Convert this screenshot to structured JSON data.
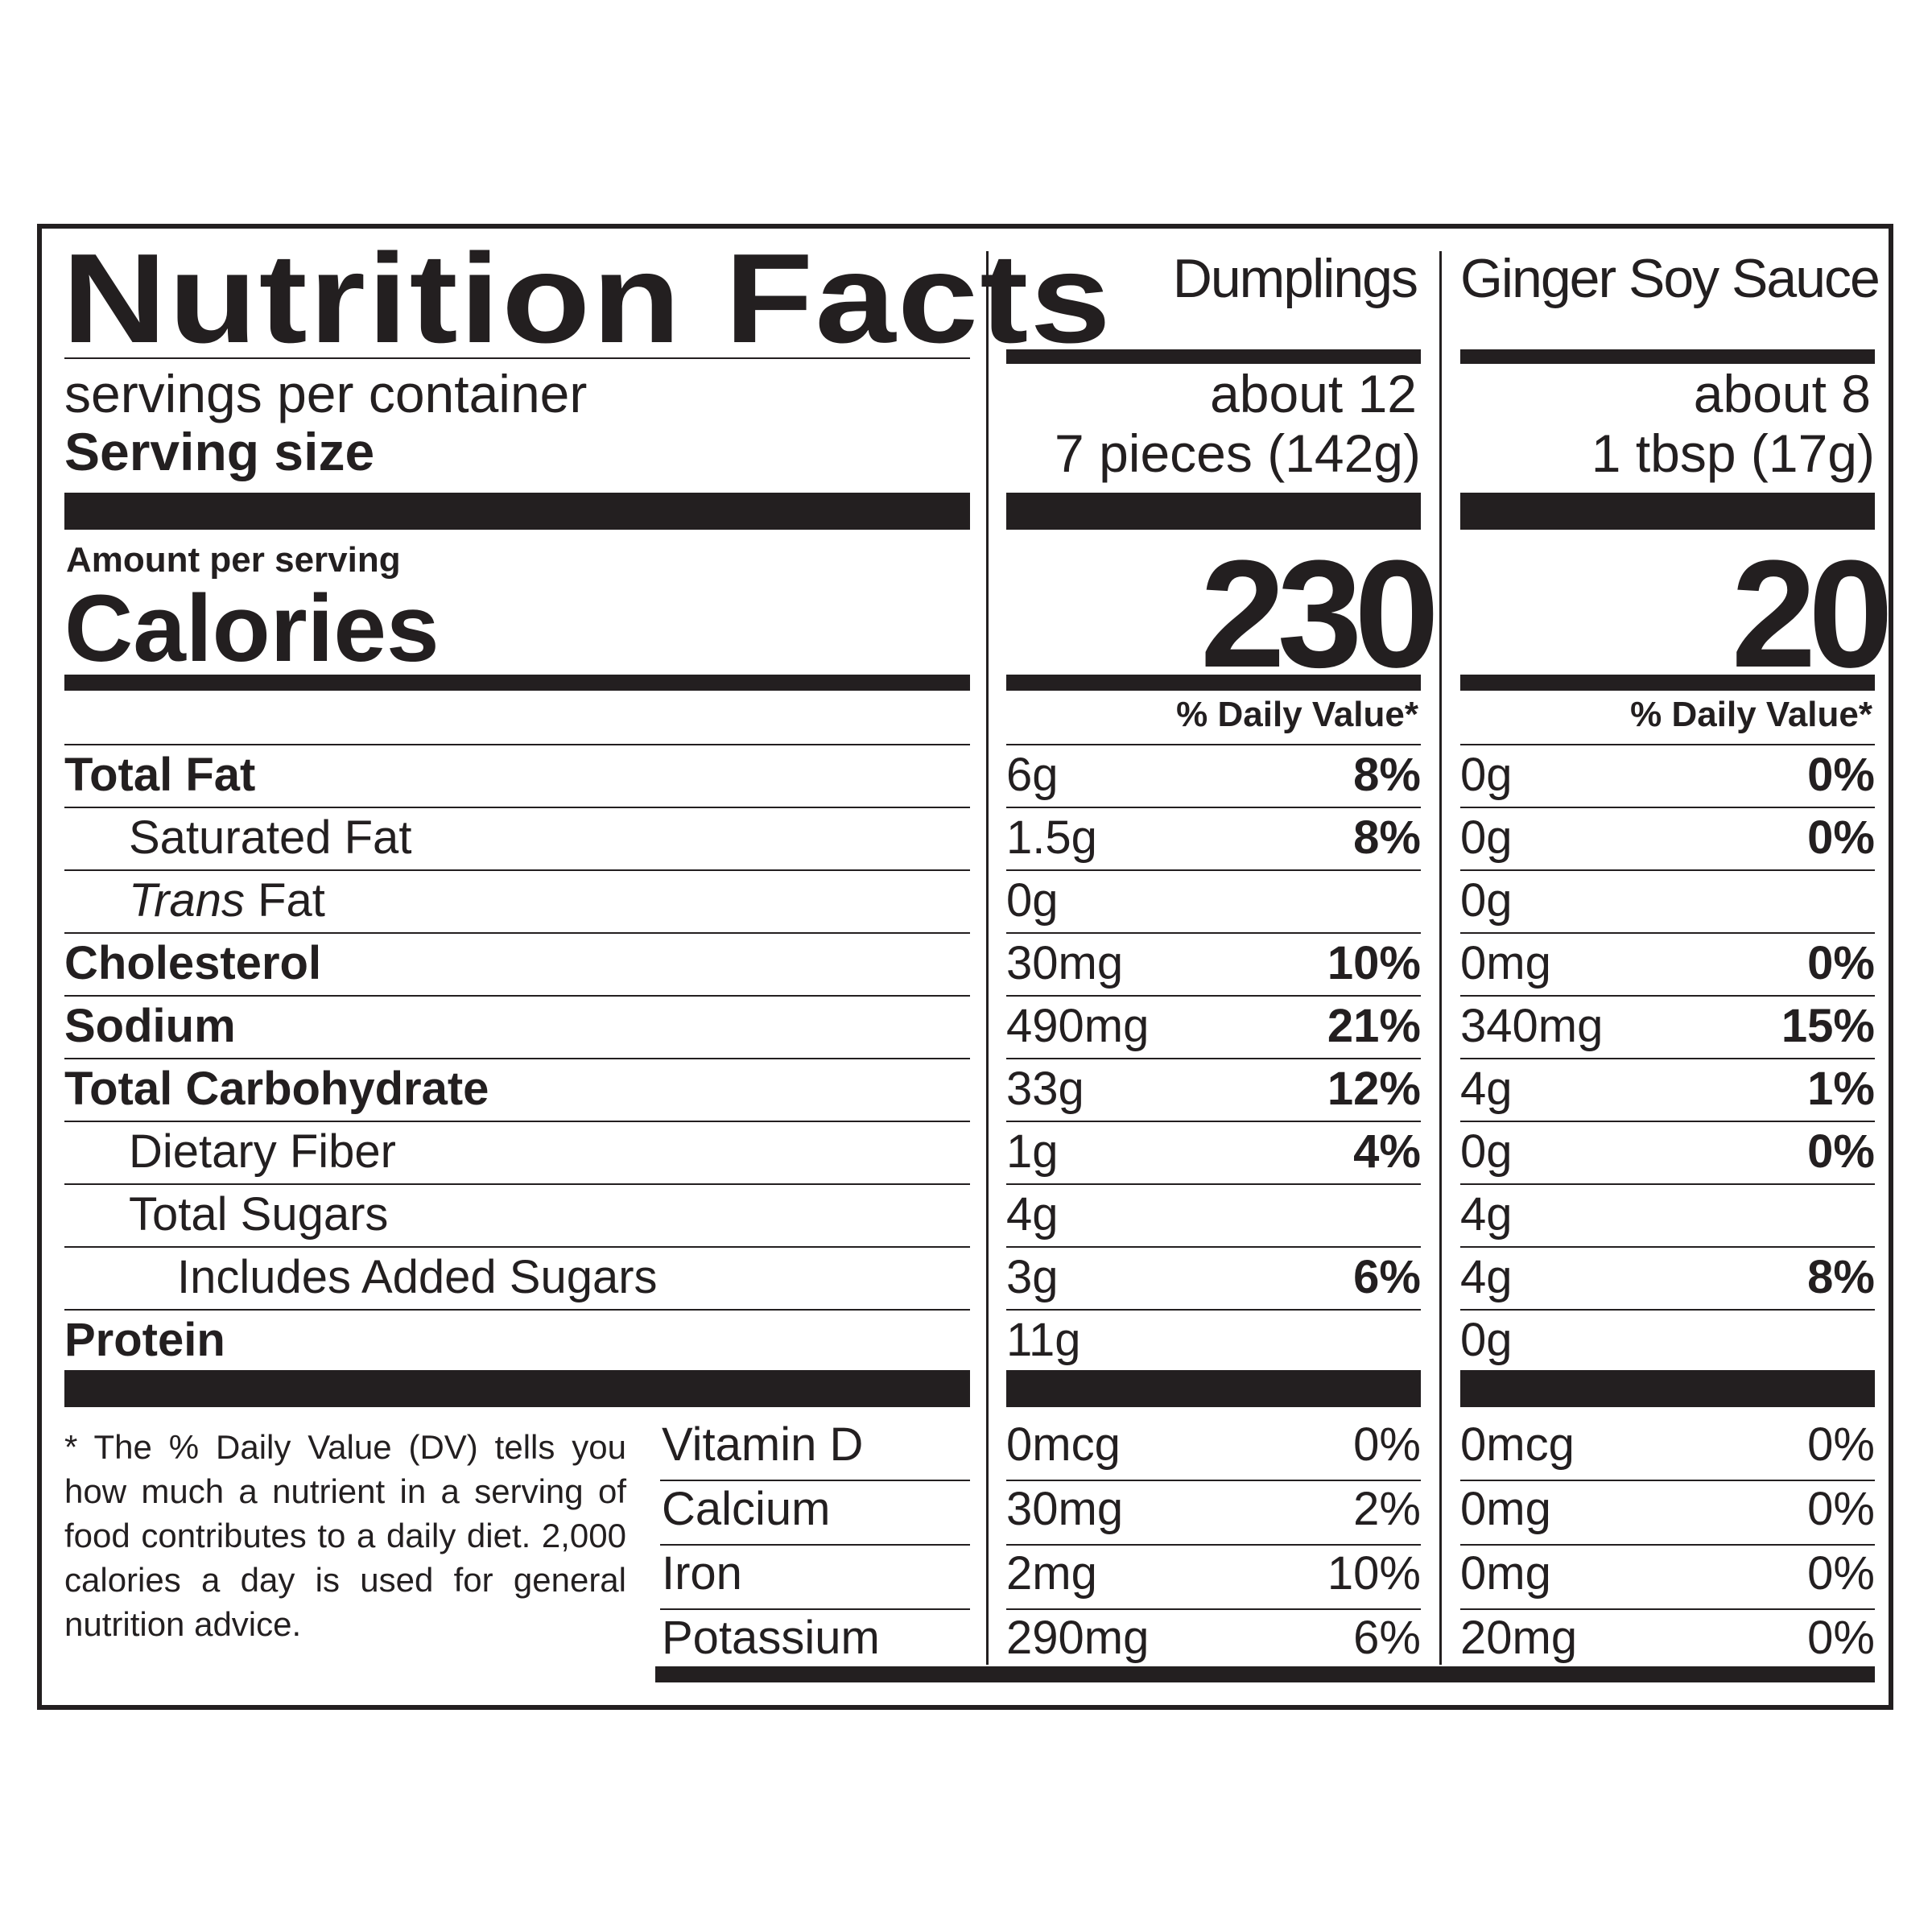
{
  "title": "Nutrition Facts",
  "servings_label": "servings per container",
  "serving_size_label": "Serving  size",
  "amount_per_serving": "Amount per serving",
  "calories_label": "Calories",
  "products": [
    {
      "name": "Dumplings",
      "servings": "about 12",
      "serving_size": "7 pieces (142g)",
      "calories": "230",
      "dv_header": "% Daily Value*"
    },
    {
      "name": "Ginger Soy Sauce",
      "servings": "about 8",
      "serving_size": "1 tbsp (17g)",
      "calories": "20",
      "dv_header": "% Daily Value*"
    }
  ],
  "nutrients": [
    {
      "label": "Total Fat",
      "level": 0,
      "bold": true,
      "p1_amount": "6g",
      "p1_dv": "8%",
      "p2_amount": "0g",
      "p2_dv": "0%"
    },
    {
      "label": "Saturated Fat",
      "level": 1,
      "bold": false,
      "p1_amount": "1.5g",
      "p1_dv": "8%",
      "p2_amount": "0g",
      "p2_dv": "0%"
    },
    {
      "label_italic": "Trans",
      "label": " Fat",
      "level": 1,
      "bold": false,
      "p1_amount": "0g",
      "p1_dv": "",
      "p2_amount": "0g",
      "p2_dv": ""
    },
    {
      "label": "Cholesterol",
      "level": 0,
      "bold": true,
      "p1_amount": "30mg",
      "p1_dv": "10%",
      "p2_amount": "0mg",
      "p2_dv": "0%"
    },
    {
      "label": "Sodium",
      "level": 0,
      "bold": true,
      "p1_amount": "490mg",
      "p1_dv": "21%",
      "p2_amount": "340mg",
      "p2_dv": "15%"
    },
    {
      "label": "Total Carbohydrate",
      "level": 0,
      "bold": true,
      "p1_amount": "33g",
      "p1_dv": "12%",
      "p2_amount": "4g",
      "p2_dv": "1%"
    },
    {
      "label": "Dietary Fiber",
      "level": 1,
      "bold": false,
      "p1_amount": "1g",
      "p1_dv": "4%",
      "p2_amount": "0g",
      "p2_dv": "0%"
    },
    {
      "label": "Total Sugars",
      "level": 1,
      "bold": false,
      "p1_amount": "4g",
      "p1_dv": "",
      "p2_amount": "4g",
      "p2_dv": ""
    },
    {
      "label": "Includes Added Sugars",
      "level": 2,
      "bold": false,
      "p1_amount": "3g",
      "p1_dv": "6%",
      "p2_amount": "4g",
      "p2_dv": "8%"
    },
    {
      "label": "Protein",
      "level": 0,
      "bold": true,
      "p1_amount": "11g",
      "p1_dv": "",
      "p2_amount": "0g",
      "p2_dv": ""
    }
  ],
  "vitamins": [
    {
      "label": "Vitamin D",
      "p1_amount": "0mcg",
      "p1_dv": "0%",
      "p2_amount": "0mcg",
      "p2_dv": "0%"
    },
    {
      "label": "Calcium",
      "p1_amount": "30mg",
      "p1_dv": "2%",
      "p2_amount": "0mg",
      "p2_dv": "0%"
    },
    {
      "label": "Iron",
      "p1_amount": "2mg",
      "p1_dv": "10%",
      "p2_amount": "0mg",
      "p2_dv": "0%"
    },
    {
      "label": "Potassium",
      "p1_amount": "290mg",
      "p1_dv": "6%",
      "p2_amount": "20mg",
      "p2_dv": "0%"
    }
  ],
  "footnote": "* The % Daily Value (DV) tells you how much a nutrient in a serving of food contributes to a daily diet. 2,000 calories a day is used for general nutrition advice."
}
